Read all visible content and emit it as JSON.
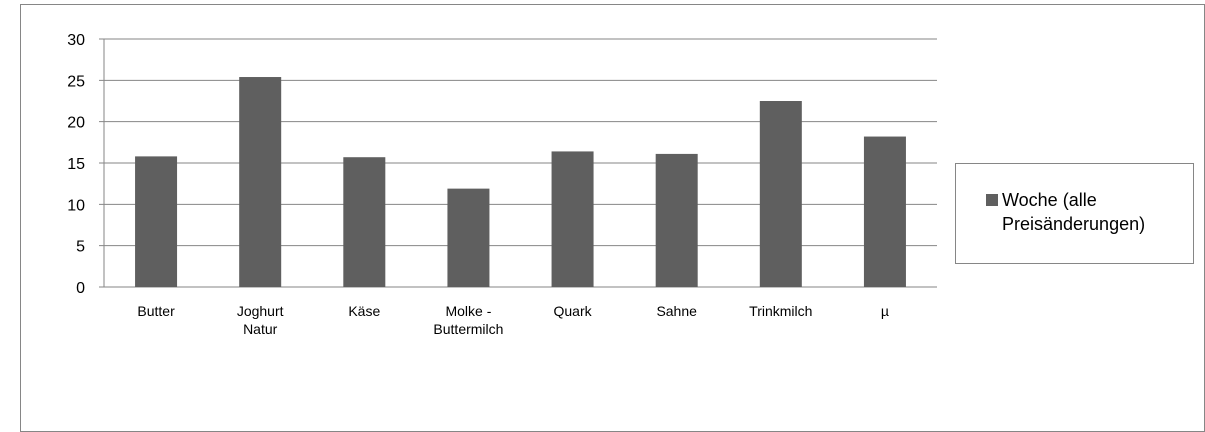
{
  "chart_data": {
    "type": "bar",
    "categories": [
      [
        "Butter"
      ],
      [
        "Joghurt",
        "Natur"
      ],
      [
        "Käse"
      ],
      [
        "Molke -",
        "Buttermilch"
      ],
      [
        "Quark"
      ],
      [
        "Sahne"
      ],
      [
        "Trinkmilch"
      ],
      [
        "µ"
      ]
    ],
    "series": [
      {
        "name": "Woche (alle Preisänderungen)",
        "values": [
          15.8,
          25.4,
          15.7,
          11.9,
          16.4,
          16.1,
          22.5,
          18.2
        ]
      }
    ],
    "ylim": [
      0,
      30
    ],
    "yticks": [
      0,
      5,
      10,
      15,
      20,
      25,
      30
    ],
    "grid": true,
    "legend_position": "right",
    "colors": {
      "bar": "#5f5f5f",
      "grid": "#868686",
      "axis": "#868686"
    }
  }
}
